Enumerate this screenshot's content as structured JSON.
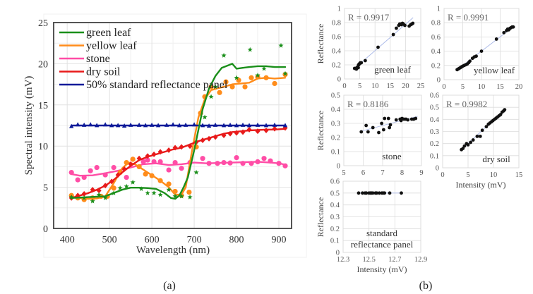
{
  "captions": {
    "a": "(a)",
    "b": "(b)"
  },
  "chart_data": [
    {
      "id": "a",
      "type": "line",
      "title": "",
      "xlabel": "Wavelength (nm)",
      "ylabel": "Spectral intensity (mV)",
      "xlim": [
        368,
        930
      ],
      "ylim": [
        0,
        25
      ],
      "xticks": [
        400,
        500,
        600,
        700,
        800,
        900
      ],
      "yticks": [
        0,
        5,
        10,
        15,
        20,
        25
      ],
      "grid": true,
      "legend_position": "top-left",
      "series": [
        {
          "name": "green leaf",
          "color": "#1a8f1a",
          "marker": "star",
          "line_x": [
            410,
            430,
            450,
            470,
            490,
            510,
            530,
            550,
            570,
            590,
            610,
            630,
            645,
            655,
            665,
            675,
            685,
            700,
            710,
            720,
            735,
            750,
            765,
            780,
            790,
            800,
            815,
            830,
            850,
            870,
            890,
            915
          ],
          "line_y": [
            3.7,
            3.75,
            3.8,
            3.85,
            3.9,
            4.3,
            4.7,
            4.95,
            4.95,
            4.9,
            4.8,
            4.3,
            3.7,
            3.6,
            4.0,
            5.0,
            6.2,
            9.5,
            12.0,
            14.5,
            17.0,
            18.5,
            19.5,
            19.8,
            20.0,
            19.4,
            19.5,
            19.6,
            19.7,
            19.7,
            19.6,
            19.6
          ],
          "points_x": [
            410,
            440,
            460,
            475,
            490,
            510,
            525,
            540,
            555,
            575,
            590,
            605,
            620,
            640,
            655,
            670,
            690,
            705,
            725,
            740,
            750,
            770,
            800,
            832,
            850,
            865,
            905,
            915
          ],
          "points_y": [
            3.8,
            3.7,
            3.3,
            4.1,
            3.7,
            4.3,
            4.9,
            5.1,
            5.6,
            4.8,
            4.3,
            4.3,
            4.1,
            4.7,
            3.9,
            3.9,
            3.8,
            6.8,
            13.5,
            16.0,
            17.2,
            21.0,
            18.3,
            21.7,
            18.6,
            19.4,
            22.2,
            18.8
          ]
        },
        {
          "name": "yellow leaf",
          "color": "#ff8c1a",
          "marker": "circle",
          "line_x": [
            410,
            430,
            450,
            470,
            490,
            510,
            530,
            545,
            560,
            575,
            590,
            605,
            620,
            640,
            655,
            670,
            680,
            695,
            710,
            725,
            740,
            755,
            770,
            790,
            810,
            830,
            850,
            870,
            890,
            915
          ],
          "line_y": [
            3.8,
            3.7,
            3.6,
            3.65,
            3.9,
            5.5,
            7.3,
            8.0,
            7.8,
            7.3,
            6.8,
            6.3,
            5.8,
            5.0,
            4.1,
            4.1,
            5.0,
            9.5,
            13.5,
            15.7,
            16.8,
            17.0,
            17.2,
            17.5,
            17.6,
            17.7,
            18.2,
            18.3,
            18.2,
            18.3
          ],
          "points_x": [
            410,
            425,
            440,
            460,
            480,
            495,
            510,
            525,
            540,
            555,
            570,
            585,
            600,
            620,
            640,
            655,
            670,
            688,
            705,
            715,
            725,
            740,
            760,
            775,
            790,
            805,
            820,
            835,
            850,
            870,
            890,
            915
          ],
          "points_y": [
            4.0,
            3.7,
            3.5,
            3.7,
            3.9,
            3.9,
            4.9,
            6.8,
            8.0,
            8.4,
            7.5,
            6.6,
            6.4,
            5.8,
            5.4,
            4.5,
            4.0,
            4.4,
            9.9,
            14.0,
            16.0,
            17.2,
            16.5,
            17.8,
            17.2,
            18.0,
            17.2,
            18.3,
            18.4,
            18.3,
            17.6,
            18.7
          ]
        },
        {
          "name": "stone",
          "color": "#ff4da6",
          "marker": "circle",
          "line_x": [
            410,
            430,
            460,
            490,
            520,
            550,
            580,
            610,
            640,
            670,
            700,
            730,
            760,
            790,
            820,
            850,
            880,
            900,
            915
          ],
          "line_y": [
            6.6,
            6.4,
            6.45,
            6.7,
            7.0,
            7.4,
            7.8,
            7.9,
            7.7,
            7.8,
            8.0,
            7.9,
            7.95,
            8.0,
            8.05,
            8.1,
            8.0,
            7.9,
            7.75
          ],
          "points_x": [
            410,
            425,
            440,
            455,
            470,
            490,
            510,
            540,
            555,
            580,
            590,
            605,
            620,
            640,
            655,
            670,
            690,
            720,
            735,
            755,
            770,
            785,
            800,
            815,
            835,
            850,
            865,
            880,
            900,
            915
          ],
          "points_y": [
            6.8,
            5.9,
            6.2,
            7.0,
            7.4,
            6.5,
            7.4,
            6.2,
            8.4,
            8.1,
            8.3,
            8.1,
            8.1,
            7.1,
            8.0,
            7.3,
            8.0,
            8.5,
            7.9,
            7.9,
            8.0,
            7.95,
            8.6,
            7.9,
            7.9,
            8.1,
            8.5,
            8.2,
            7.9,
            7.6
          ]
        },
        {
          "name": "dry soil",
          "color": "#e81a1a",
          "marker": "diamond",
          "line_x": [
            410,
            430,
            450,
            470,
            490,
            510,
            530,
            550,
            570,
            590,
            610,
            630,
            650,
            670,
            690,
            710,
            730,
            750,
            770,
            790,
            810,
            830,
            850,
            870,
            890,
            915
          ],
          "line_y": [
            3.7,
            4.0,
            4.3,
            4.7,
            5.2,
            5.9,
            6.8,
            7.6,
            8.3,
            8.7,
            9.0,
            9.3,
            9.6,
            9.8,
            10.2,
            10.6,
            10.9,
            11.2,
            11.5,
            11.7,
            11.8,
            11.9,
            11.95,
            12.0,
            12.0,
            12.1
          ],
          "points_x": [
            410,
            425,
            440,
            460,
            475,
            490,
            505,
            520,
            535,
            550,
            570,
            590,
            605,
            620,
            640,
            655,
            670,
            690,
            705,
            720,
            735,
            750,
            770,
            785,
            800,
            815,
            830,
            850,
            870,
            890,
            915
          ],
          "points_y": [
            3.7,
            4.0,
            4.2,
            4.7,
            4.6,
            5.2,
            5.7,
            6.5,
            7.2,
            7.8,
            8.5,
            8.8,
            9.0,
            9.3,
            9.5,
            9.8,
            9.9,
            10.0,
            10.5,
            10.7,
            10.9,
            11.1,
            11.3,
            11.5,
            11.6,
            11.7,
            12.0,
            11.8,
            11.9,
            12.1,
            12.2
          ]
        },
        {
          "name": "50% standard reflectance panel",
          "color": "#0d1a99",
          "marker": "triangle",
          "line_x": [
            410,
            915
          ],
          "line_y": [
            12.5,
            12.5
          ],
          "points_x": [
            410,
            425,
            440,
            455,
            470,
            490,
            505,
            520,
            535,
            550,
            570,
            585,
            600,
            615,
            635,
            650,
            665,
            680,
            700,
            720,
            735,
            750,
            770,
            785,
            800,
            815,
            830,
            850,
            870,
            890,
            915
          ],
          "points_y": [
            12.4,
            12.6,
            12.55,
            12.6,
            12.5,
            12.6,
            12.5,
            12.5,
            12.45,
            12.55,
            12.55,
            12.5,
            12.55,
            12.5,
            12.55,
            12.6,
            12.5,
            12.55,
            12.6,
            12.5,
            12.45,
            12.55,
            12.5,
            12.55,
            12.5,
            12.55,
            12.5,
            12.55,
            12.5,
            12.55,
            12.5
          ]
        }
      ]
    },
    {
      "id": "b-green-leaf",
      "type": "scatter",
      "name": "green leaf",
      "r_label": "R = 0.9917",
      "xlim": [
        0,
        25
      ],
      "ylim": [
        0,
        1
      ],
      "xticks": [
        0,
        5,
        10,
        15,
        20,
        25
      ],
      "yticks": [
        0,
        0.2,
        0.4,
        0.6,
        0.8,
        1
      ],
      "ylabel": "Reflectance",
      "xlabel": "",
      "trend": [
        [
          3.3,
          0.15
        ],
        [
          22.5,
          0.87
        ]
      ],
      "x": [
        3.3,
        3.6,
        3.9,
        4.1,
        4.3,
        4.5,
        4.6,
        4.8,
        5.0,
        5.2,
        5.5,
        6.8,
        11.0,
        16.0,
        17.0,
        17.8,
        18.1,
        18.4,
        18.7,
        19.0,
        19.3,
        19.8,
        21.2,
        21.7,
        22.1,
        22.4
      ],
      "y": [
        0.15,
        0.15,
        0.14,
        0.16,
        0.17,
        0.16,
        0.2,
        0.21,
        0.22,
        0.23,
        0.23,
        0.26,
        0.45,
        0.63,
        0.72,
        0.76,
        0.78,
        0.78,
        0.77,
        0.79,
        0.78,
        0.76,
        0.75,
        0.77,
        0.78,
        0.79
      ]
    },
    {
      "id": "b-yellow-leaf",
      "type": "scatter",
      "name": "yellow leaf",
      "r_label": "R = 0.9991",
      "xlim": [
        0,
        20
      ],
      "ylim": [
        0,
        1
      ],
      "xticks": [
        0,
        5,
        10,
        15,
        20
      ],
      "yticks": [
        0,
        0.2,
        0.4,
        0.6,
        0.8,
        1
      ],
      "ylabel": "",
      "xlabel": "",
      "trend": [
        [
          3.5,
          0.14
        ],
        [
          18.7,
          0.75
        ]
      ],
      "x": [
        3.5,
        3.8,
        4.1,
        4.4,
        4.7,
        5.0,
        5.4,
        5.8,
        6.2,
        6.6,
        6.9,
        7.6,
        8.1,
        8.6,
        10.0,
        14.0,
        16.0,
        16.7,
        17.0,
        17.3,
        17.6,
        17.9,
        18.2,
        18.5
      ],
      "y": [
        0.14,
        0.15,
        0.16,
        0.17,
        0.18,
        0.19,
        0.2,
        0.21,
        0.22,
        0.24,
        0.26,
        0.3,
        0.32,
        0.33,
        0.4,
        0.57,
        0.66,
        0.69,
        0.71,
        0.7,
        0.72,
        0.73,
        0.74,
        0.74
      ]
    },
    {
      "id": "b-stone",
      "type": "scatter",
      "name": "stone",
      "r_label": "R = 0.8186",
      "xlim": [
        5,
        9
      ],
      "ylim": [
        0,
        0.5
      ],
      "xticks": [
        5,
        6,
        7,
        8,
        9
      ],
      "yticks": [
        0,
        0.1,
        0.2,
        0.3,
        0.4,
        0.5
      ],
      "ylabel": "Reflectance",
      "xlabel": "",
      "trend": [
        [
          5.9,
          0.245
        ],
        [
          8.8,
          0.35
        ]
      ],
      "x": [
        5.9,
        6.15,
        6.25,
        6.5,
        6.8,
        6.95,
        7.05,
        7.1,
        7.3,
        7.35,
        7.4,
        7.7,
        7.9,
        7.95,
        8.0,
        8.1,
        8.2,
        8.3,
        8.5,
        8.6,
        8.7
      ],
      "y": [
        0.24,
        0.285,
        0.24,
        0.27,
        0.235,
        0.3,
        0.255,
        0.335,
        0.335,
        0.27,
        0.29,
        0.325,
        0.33,
        0.32,
        0.335,
        0.33,
        0.33,
        0.325,
        0.33,
        0.33,
        0.335
      ]
    },
    {
      "id": "b-dry-soil",
      "type": "scatter",
      "name": "dry soil",
      "r_label": "R = 0.9982",
      "xlim": [
        0,
        15
      ],
      "ylim": [
        0,
        0.6
      ],
      "xticks": [
        0,
        5,
        10,
        15
      ],
      "yticks": [
        0,
        0.1,
        0.2,
        0.3,
        0.4,
        0.5,
        0.6
      ],
      "ylabel": "",
      "xlabel": "Intensity  (mV)",
      "trend": [
        [
          3.7,
          0.15
        ],
        [
          12.2,
          0.48
        ]
      ],
      "x": [
        3.7,
        4.0,
        4.3,
        4.7,
        5.0,
        5.5,
        6.0,
        6.8,
        7.4,
        7.8,
        8.6,
        9.0,
        9.3,
        9.6,
        9.9,
        10.2,
        10.5,
        10.8,
        11.1,
        11.4,
        11.7,
        12.0,
        12.2
      ],
      "y": [
        0.15,
        0.16,
        0.18,
        0.2,
        0.19,
        0.21,
        0.23,
        0.26,
        0.26,
        0.31,
        0.34,
        0.36,
        0.37,
        0.38,
        0.39,
        0.4,
        0.41,
        0.42,
        0.43,
        0.44,
        0.46,
        0.47,
        0.48
      ]
    },
    {
      "id": "b-standard-panel",
      "type": "scatter",
      "name": "standard\nreflectance panel",
      "name_lines": [
        "standard",
        "reflectance panel"
      ],
      "r_label": "",
      "xlim": [
        12.3,
        12.9
      ],
      "ylim": [
        0,
        0.6
      ],
      "xticks": [
        12.3,
        12.5,
        12.7,
        12.9
      ],
      "yticks": [
        0,
        0.1,
        0.2,
        0.3,
        0.4,
        0.5,
        0.6
      ],
      "ylabel": "Reflectance",
      "xlabel": "Intensity  (mV)",
      "trend": [
        [
          12.42,
          0.5
        ],
        [
          12.76,
          0.5
        ]
      ],
      "x": [
        12.42,
        12.45,
        12.47,
        12.48,
        12.5,
        12.51,
        12.52,
        12.53,
        12.55,
        12.56,
        12.58,
        12.6,
        12.61,
        12.62,
        12.66,
        12.75
      ],
      "y": [
        0.5,
        0.5,
        0.5,
        0.5,
        0.5,
        0.5,
        0.5,
        0.5,
        0.5,
        0.5,
        0.5,
        0.5,
        0.5,
        0.5,
        0.5,
        0.5
      ]
    }
  ]
}
